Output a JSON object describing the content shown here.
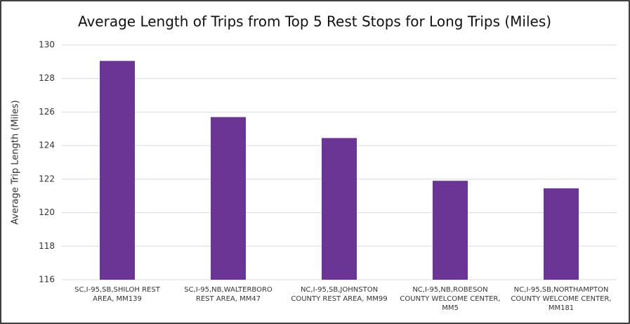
{
  "chart_data": {
    "type": "bar",
    "title": "Average Length of Trips from Top 5 Rest Stops for Long Trips (Miles)",
    "y_label": "Average Trip Length (Miles)",
    "categories": [
      "SC,I-95,SB,SHILOH REST AREA, MM139",
      "SC,I-95,NB,WALTERBORO REST AREA, MM47",
      "NC,I-95,SB,JOHNSTON COUNTY REST AREA, MM99",
      "NC,I-95,NB,ROBESON COUNTY WELCOME CENTER, MM5",
      "NC,I-95,SB,NORTHAMPTON COUNTY WELCOME CENTER, MM181"
    ],
    "values": [
      129.05,
      125.7,
      124.45,
      121.9,
      121.45
    ],
    "color": "#6a3594",
    "ylim": [
      116,
      130
    ],
    "yticks": [
      116,
      118,
      120,
      122,
      124,
      126,
      128,
      130
    ],
    "grid": true
  }
}
